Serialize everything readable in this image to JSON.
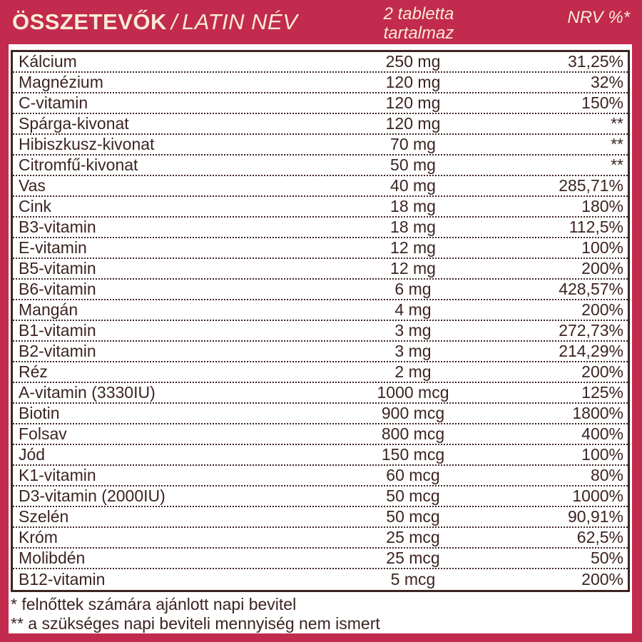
{
  "colors": {
    "crimson": "#c22a4e",
    "brown": "#3c2422",
    "cream": "#f7ecd2",
    "white": "#ffffff"
  },
  "header": {
    "title_bold": "ÖSSZETEVŐK",
    "title_separator": "/",
    "title_italic": "LATIN NÉV",
    "center_line1": "2 tabletta",
    "center_line2": "tartalmaz",
    "right_label": "NRV %*"
  },
  "table": {
    "columns": [
      "ingredient",
      "amount_per_2_tablets",
      "nrv_percent"
    ],
    "rows": [
      {
        "name": "Kálcium",
        "amount": "250 mg",
        "nrv": "31,25%"
      },
      {
        "name": "Magnézium",
        "amount": "120 mg",
        "nrv": "32%"
      },
      {
        "name": "C-vitamin",
        "amount": "120 mg",
        "nrv": "150%"
      },
      {
        "name": "Spárga-kivonat",
        "amount": "120 mg",
        "nrv": "**"
      },
      {
        "name": "Hibiszkusz-kivonat",
        "amount": "70 mg",
        "nrv": "**"
      },
      {
        "name": "Citromfű-kivonat",
        "amount": "50 mg",
        "nrv": "**"
      },
      {
        "name": "Vas",
        "amount": "40 mg",
        "nrv": "285,71%"
      },
      {
        "name": "Cink",
        "amount": "18 mg",
        "nrv": "180%"
      },
      {
        "name": "B3-vitamin",
        "amount": "18 mg",
        "nrv": "112,5%"
      },
      {
        "name": "E-vitamin",
        "amount": "12 mg",
        "nrv": "100%"
      },
      {
        "name": "B5-vitamin",
        "amount": "12 mg",
        "nrv": "200%"
      },
      {
        "name": "B6-vitamin",
        "amount": "6 mg",
        "nrv": "428,57%"
      },
      {
        "name": "Mangán",
        "amount": "4 mg",
        "nrv": "200%"
      },
      {
        "name": "B1-vitamin",
        "amount": "3 mg",
        "nrv": "272,73%"
      },
      {
        "name": "B2-vitamin",
        "amount": "3 mg",
        "nrv": "214,29%"
      },
      {
        "name": "Réz",
        "amount": "2 mg",
        "nrv": "200%"
      },
      {
        "name": "A-vitamin (3330IU)",
        "amount": "1000 mcg",
        "nrv": "125%"
      },
      {
        "name": "Biotin",
        "amount": "900 mcg",
        "nrv": "1800%"
      },
      {
        "name": "Folsav",
        "amount": "800 mcg",
        "nrv": "400%"
      },
      {
        "name": "Jód",
        "amount": "150 mcg",
        "nrv": "100%"
      },
      {
        "name": "K1-vitamin",
        "amount": "60 mcg",
        "nrv": "80%"
      },
      {
        "name": "D3-vitamin (2000IU)",
        "amount": "50 mcg",
        "nrv": "1000%"
      },
      {
        "name": "Szelén",
        "amount": "50 mcg",
        "nrv": "90,91%"
      },
      {
        "name": "Króm",
        "amount": "25 mcg",
        "nrv": "62,5%"
      },
      {
        "name": "Molibdén",
        "amount": "25 mcg",
        "nrv": "50%"
      },
      {
        "name": "B12-vitamin",
        "amount": "5 mcg",
        "nrv": "200%"
      }
    ]
  },
  "footnotes": [
    "* felnőttek számára ajánlott napi bevitel",
    "** a szükséges napi beviteli mennyiség nem ismert"
  ]
}
